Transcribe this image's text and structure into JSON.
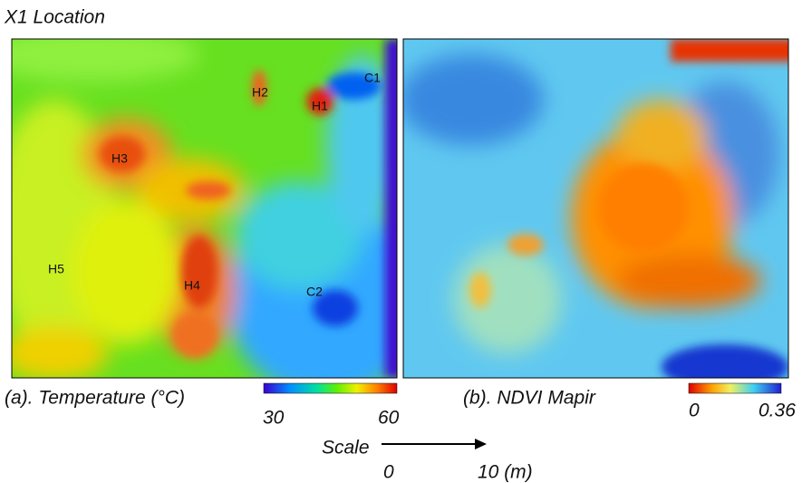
{
  "header": {
    "title": "X1 Location"
  },
  "panels": [
    {
      "caption": "(a). Temperature (°C)",
      "labels": [
        "H2",
        "H1",
        "C1",
        "H3",
        "H5",
        "H4",
        "C2"
      ],
      "colorbar": {
        "min_label": "30",
        "max_label": "60"
      }
    },
    {
      "caption": "(b). NDVI Mapir",
      "colorbar": {
        "min_label": "0",
        "max_label": "0.36"
      }
    }
  ],
  "scale": {
    "title": "Scale",
    "start_label": "0",
    "end_label": "10 (m)"
  }
}
